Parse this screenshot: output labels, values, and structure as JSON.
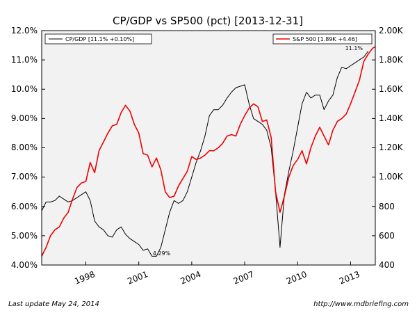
{
  "chart_data": {
    "type": "line",
    "title": "CP/GDP vs SP500 (pct) [2013-12-31]",
    "xlabel": "",
    "ylabel": "",
    "y2label": "",
    "xlim": [
      1995.5,
      2014.4
    ],
    "ylim": [
      4.0,
      12.0
    ],
    "y2lim": [
      400,
      2000
    ],
    "x_ticks": [
      {
        "value": 1998,
        "label": "1998"
      },
      {
        "value": 2001,
        "label": "2001"
      },
      {
        "value": 2004,
        "label": "2004"
      },
      {
        "value": 2007,
        "label": "2007"
      },
      {
        "value": 2010,
        "label": "2010"
      },
      {
        "value": 2013,
        "label": "2013"
      }
    ],
    "y_ticks": [
      "4.00%",
      "5.00%",
      "6.00%",
      "7.00%",
      "8.00%",
      "9.00%",
      "10.0%",
      "11.0%",
      "12.0%"
    ],
    "y2_ticks": [
      "400",
      "600",
      "800",
      "1.00K",
      "1.20K",
      "1.40K",
      "1.60K",
      "1.80K",
      "2.00K"
    ],
    "grid": false,
    "legend_left": {
      "placement": "top-left",
      "label": "CP/GDP [11.1% +0.10%]"
    },
    "legend_right": {
      "placement": "top-right",
      "label": "S&P 500 [1.89K +4.46]"
    },
    "annotations": [
      {
        "text": "4.29%",
        "x": 2001.95,
        "y": 4.29,
        "axis": "left"
      },
      {
        "text": "11.1%",
        "x": 2013.4,
        "y": 11.1,
        "axis": "left"
      }
    ],
    "colors": {
      "cp_gdp": "#000000",
      "sp500": "#ee0000",
      "plot_bg": "#f2f2f2"
    },
    "series": [
      {
        "name": "CP/GDP [11.1% +0.10%]",
        "axis": "left",
        "color": "#000000",
        "x": [
          1995.5,
          1995.75,
          1996.0,
          1996.25,
          1996.5,
          1996.75,
          1997.0,
          1997.25,
          1997.5,
          1997.75,
          1998.0,
          1998.25,
          1998.5,
          1998.75,
          1999.0,
          1999.25,
          1999.5,
          1999.75,
          2000.0,
          2000.25,
          2000.5,
          2000.75,
          2001.0,
          2001.25,
          2001.5,
          2001.75,
          2002.0,
          2002.25,
          2002.5,
          2002.75,
          2003.0,
          2003.25,
          2003.5,
          2003.75,
          2004.0,
          2004.25,
          2004.5,
          2004.75,
          2005.0,
          2005.25,
          2005.5,
          2005.75,
          2006.0,
          2006.25,
          2006.5,
          2006.75,
          2007.0,
          2007.25,
          2007.5,
          2007.75,
          2008.0,
          2008.25,
          2008.5,
          2008.75,
          2009.0,
          2009.25,
          2009.5,
          2009.75,
          2010.0,
          2010.25,
          2010.5,
          2010.75,
          2011.0,
          2011.25,
          2011.5,
          2011.75,
          2012.0,
          2012.25,
          2012.5,
          2012.75,
          2013.0,
          2013.25,
          2013.5,
          2013.75,
          2014.0
        ],
        "values": [
          5.85,
          6.15,
          6.15,
          6.2,
          6.35,
          6.25,
          6.15,
          6.2,
          6.3,
          6.4,
          6.5,
          6.2,
          5.5,
          5.3,
          5.2,
          5.0,
          4.95,
          5.2,
          5.3,
          5.05,
          4.9,
          4.8,
          4.7,
          4.5,
          4.55,
          4.3,
          4.3,
          4.6,
          5.2,
          5.8,
          6.2,
          6.1,
          6.2,
          6.5,
          7.0,
          7.5,
          7.9,
          8.4,
          9.1,
          9.3,
          9.3,
          9.45,
          9.7,
          9.9,
          10.05,
          10.1,
          10.15,
          9.5,
          9.0,
          8.9,
          8.8,
          8.6,
          8.0,
          6.5,
          4.6,
          6.4,
          7.2,
          7.9,
          8.7,
          9.5,
          9.9,
          9.7,
          9.8,
          9.8,
          9.3,
          9.6,
          9.8,
          10.4,
          10.75,
          10.7,
          10.8,
          10.9,
          11.0,
          11.1,
          11.3
        ]
      },
      {
        "name": "S&P 500 [1.89K +4.46]",
        "axis": "right",
        "color": "#ee0000",
        "x": [
          1995.5,
          1995.75,
          1996.0,
          1996.25,
          1996.5,
          1996.75,
          1997.0,
          1997.25,
          1997.5,
          1997.75,
          1998.0,
          1998.25,
          1998.5,
          1998.75,
          1999.0,
          1999.25,
          1999.5,
          1999.75,
          2000.0,
          2000.25,
          2000.5,
          2000.75,
          2001.0,
          2001.25,
          2001.5,
          2001.75,
          2002.0,
          2002.25,
          2002.5,
          2002.75,
          2003.0,
          2003.25,
          2003.5,
          2003.75,
          2004.0,
          2004.25,
          2004.5,
          2004.75,
          2005.0,
          2005.25,
          2005.5,
          2005.75,
          2006.0,
          2006.25,
          2006.5,
          2006.75,
          2007.0,
          2007.25,
          2007.5,
          2007.75,
          2008.0,
          2008.25,
          2008.5,
          2008.75,
          2009.0,
          2009.25,
          2009.5,
          2009.75,
          2010.0,
          2010.25,
          2010.5,
          2010.75,
          2011.0,
          2011.25,
          2011.5,
          2011.75,
          2012.0,
          2012.25,
          2012.5,
          2012.75,
          2013.0,
          2013.25,
          2013.5,
          2013.75,
          2014.0,
          2014.25,
          2014.4
        ],
        "values": [
          460,
          520,
          600,
          640,
          660,
          720,
          760,
          850,
          930,
          960,
          970,
          1100,
          1030,
          1180,
          1240,
          1300,
          1350,
          1360,
          1440,
          1490,
          1450,
          1360,
          1300,
          1160,
          1150,
          1070,
          1130,
          1050,
          900,
          860,
          870,
          940,
          990,
          1040,
          1140,
          1120,
          1130,
          1150,
          1180,
          1180,
          1200,
          1230,
          1280,
          1290,
          1280,
          1360,
          1420,
          1470,
          1500,
          1480,
          1380,
          1390,
          1270,
          900,
          760,
          870,
          1000,
          1080,
          1120,
          1180,
          1090,
          1200,
          1280,
          1340,
          1280,
          1220,
          1320,
          1380,
          1400,
          1430,
          1500,
          1580,
          1660,
          1790,
          1840,
          1880,
          1890
        ]
      }
    ]
  },
  "footer": {
    "left": "Last update May 24, 2014",
    "right": "http://www.mdbriefing.com"
  }
}
